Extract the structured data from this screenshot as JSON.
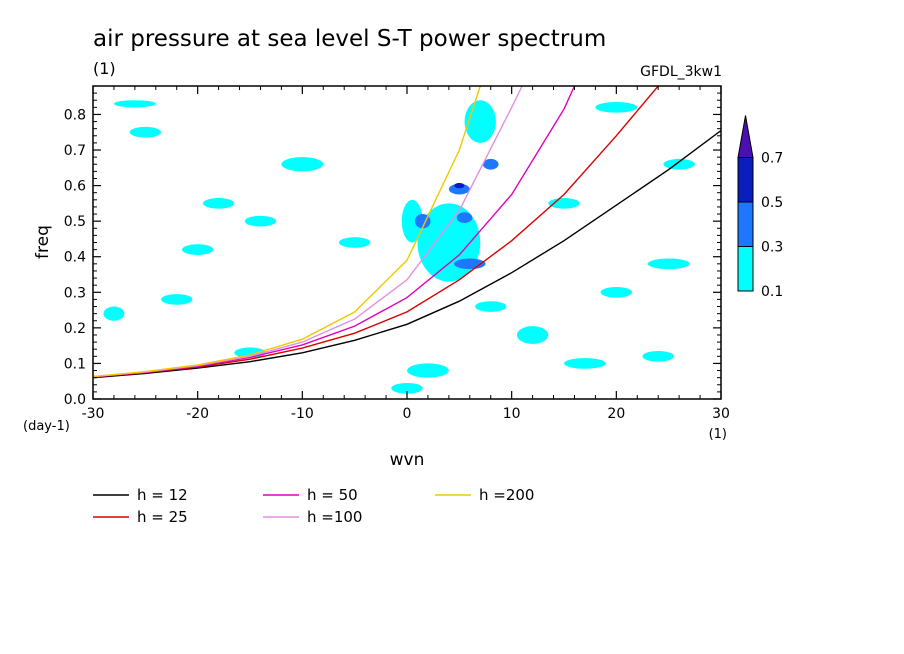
{
  "chart_data": {
    "type": "contour",
    "title": "air pressure at sea level S-T power spectrum",
    "units": "(1)",
    "model": "GFDL_3kw1",
    "xlabel": "wvn",
    "ylabel": "freq",
    "x_unit": "(1)",
    "y_unit": "(day-1)",
    "xlim": [
      -30,
      30
    ],
    "ylim": [
      0,
      0.88
    ],
    "x_ticks": [
      -30,
      -20,
      -10,
      0,
      10,
      20,
      30
    ],
    "x_tick_labels": [
      "-30",
      "-20",
      "-10",
      "0",
      "10",
      "20",
      "30"
    ],
    "y_ticks": [
      0.0,
      0.1,
      0.2,
      0.3,
      0.4,
      0.5,
      0.6,
      0.7,
      0.8
    ],
    "y_tick_labels": [
      "0.0",
      "0.1",
      "0.2",
      "0.3",
      "0.4",
      "0.5",
      "0.6",
      "0.7",
      "0.8"
    ],
    "colorbar": {
      "levels": [
        "0.1",
        "0.3",
        "0.5",
        "0.7"
      ],
      "colors": [
        "#00ffff",
        "#1e78ff",
        "#0a1ebe",
        "#4b0fb4"
      ]
    },
    "series": [
      {
        "name": "h = 12",
        "color": "#000000",
        "x": [
          -30,
          -25,
          -20,
          -15,
          -10,
          -5,
          0,
          5,
          10,
          15,
          20,
          25,
          30
        ],
        "y": [
          0.06,
          0.072,
          0.087,
          0.105,
          0.13,
          0.165,
          0.21,
          0.275,
          0.355,
          0.445,
          0.545,
          0.645,
          0.755
        ]
      },
      {
        "name": "h = 25",
        "color": "#dd0000",
        "x": [
          -30,
          -25,
          -20,
          -15,
          -10,
          -5,
          0,
          5,
          10,
          15,
          20,
          24
        ],
        "y": [
          0.062,
          0.074,
          0.09,
          0.112,
          0.143,
          0.185,
          0.245,
          0.335,
          0.445,
          0.575,
          0.74,
          0.88
        ]
      },
      {
        "name": "h = 50",
        "color": "#e000c0",
        "x": [
          -30,
          -25,
          -20,
          -15,
          -10,
          -5,
          0,
          5,
          10,
          15,
          16
        ],
        "y": [
          0.062,
          0.075,
          0.092,
          0.117,
          0.152,
          0.205,
          0.285,
          0.405,
          0.575,
          0.815,
          0.88
        ]
      },
      {
        "name": "h =100",
        "color": "#e090e0",
        "x": [
          -30,
          -25,
          -20,
          -15,
          -10,
          -5,
          0,
          5,
          10,
          11
        ],
        "y": [
          0.063,
          0.076,
          0.094,
          0.12,
          0.16,
          0.225,
          0.335,
          0.53,
          0.82,
          0.88
        ]
      },
      {
        "name": "h =200",
        "color": "#f0c800",
        "x": [
          -30,
          -25,
          -20,
          -15,
          -10,
          -5,
          0,
          5,
          7
        ],
        "y": [
          0.063,
          0.077,
          0.096,
          0.124,
          0.168,
          0.245,
          0.39,
          0.7,
          0.88
        ]
      }
    ],
    "contour_regions": [
      {
        "level": 0.1,
        "x": 4,
        "y": 0.44,
        "w": 6,
        "h": 0.22
      },
      {
        "level": 0.1,
        "x": 0.5,
        "y": 0.5,
        "w": 2,
        "h": 0.12
      },
      {
        "level": 0.1,
        "x": 7,
        "y": 0.78,
        "w": 3,
        "h": 0.12
      },
      {
        "level": 0.1,
        "x": 12,
        "y": 0.18,
        "w": 3,
        "h": 0.05
      },
      {
        "level": 0.1,
        "x": -25,
        "y": 0.75,
        "w": 3,
        "h": 0.03
      },
      {
        "level": 0.1,
        "x": -10,
        "y": 0.66,
        "w": 4,
        "h": 0.04
      },
      {
        "level": 0.1,
        "x": 20,
        "y": 0.82,
        "w": 4,
        "h": 0.03
      },
      {
        "level": 0.1,
        "x": -22,
        "y": 0.28,
        "w": 3,
        "h": 0.03
      },
      {
        "level": 0.1,
        "x": 25,
        "y": 0.38,
        "w": 4,
        "h": 0.03
      },
      {
        "level": 0.1,
        "x": -15,
        "y": 0.13,
        "w": 3,
        "h": 0.03
      },
      {
        "level": 0.1,
        "x": 2,
        "y": 0.08,
        "w": 4,
        "h": 0.04
      },
      {
        "level": 0.1,
        "x": 24,
        "y": 0.12,
        "w": 3,
        "h": 0.03
      },
      {
        "level": 0.1,
        "x": -28,
        "y": 0.24,
        "w": 2,
        "h": 0.04
      },
      {
        "level": 0.1,
        "x": -14,
        "y": 0.5,
        "w": 3,
        "h": 0.03
      },
      {
        "level": 0.1,
        "x": -26,
        "y": 0.83,
        "w": 4,
        "h": 0.02
      },
      {
        "level": 0.1,
        "x": 26,
        "y": 0.66,
        "w": 3,
        "h": 0.03
      },
      {
        "level": 0.1,
        "x": -5,
        "y": 0.44,
        "w": 3,
        "h": 0.03
      },
      {
        "level": 0.1,
        "x": 8,
        "y": 0.26,
        "w": 3,
        "h": 0.03
      },
      {
        "level": 0.1,
        "x": -18,
        "y": 0.55,
        "w": 3,
        "h": 0.03
      },
      {
        "level": 0.1,
        "x": 15,
        "y": 0.55,
        "w": 3,
        "h": 0.03
      },
      {
        "level": 0.1,
        "x": 0,
        "y": 0.03,
        "w": 3,
        "h": 0.03
      },
      {
        "level": 0.1,
        "x": 20,
        "y": 0.3,
        "w": 3,
        "h": 0.03
      },
      {
        "level": 0.1,
        "x": -20,
        "y": 0.42,
        "w": 3,
        "h": 0.03
      },
      {
        "level": 0.1,
        "x": 17,
        "y": 0.1,
        "w": 4,
        "h": 0.03
      },
      {
        "level": 0.3,
        "x": 5,
        "y": 0.59,
        "w": 2,
        "h": 0.03
      },
      {
        "level": 0.3,
        "x": 1.5,
        "y": 0.5,
        "w": 1.5,
        "h": 0.04
      },
      {
        "level": 0.3,
        "x": 6,
        "y": 0.38,
        "w": 3,
        "h": 0.03
      },
      {
        "level": 0.3,
        "x": 8,
        "y": 0.66,
        "w": 1.5,
        "h": 0.03
      },
      {
        "level": 0.3,
        "x": 5.5,
        "y": 0.51,
        "w": 1.5,
        "h": 0.03
      },
      {
        "level": 0.5,
        "x": 5,
        "y": 0.6,
        "w": 1,
        "h": 0.015
      }
    ]
  }
}
